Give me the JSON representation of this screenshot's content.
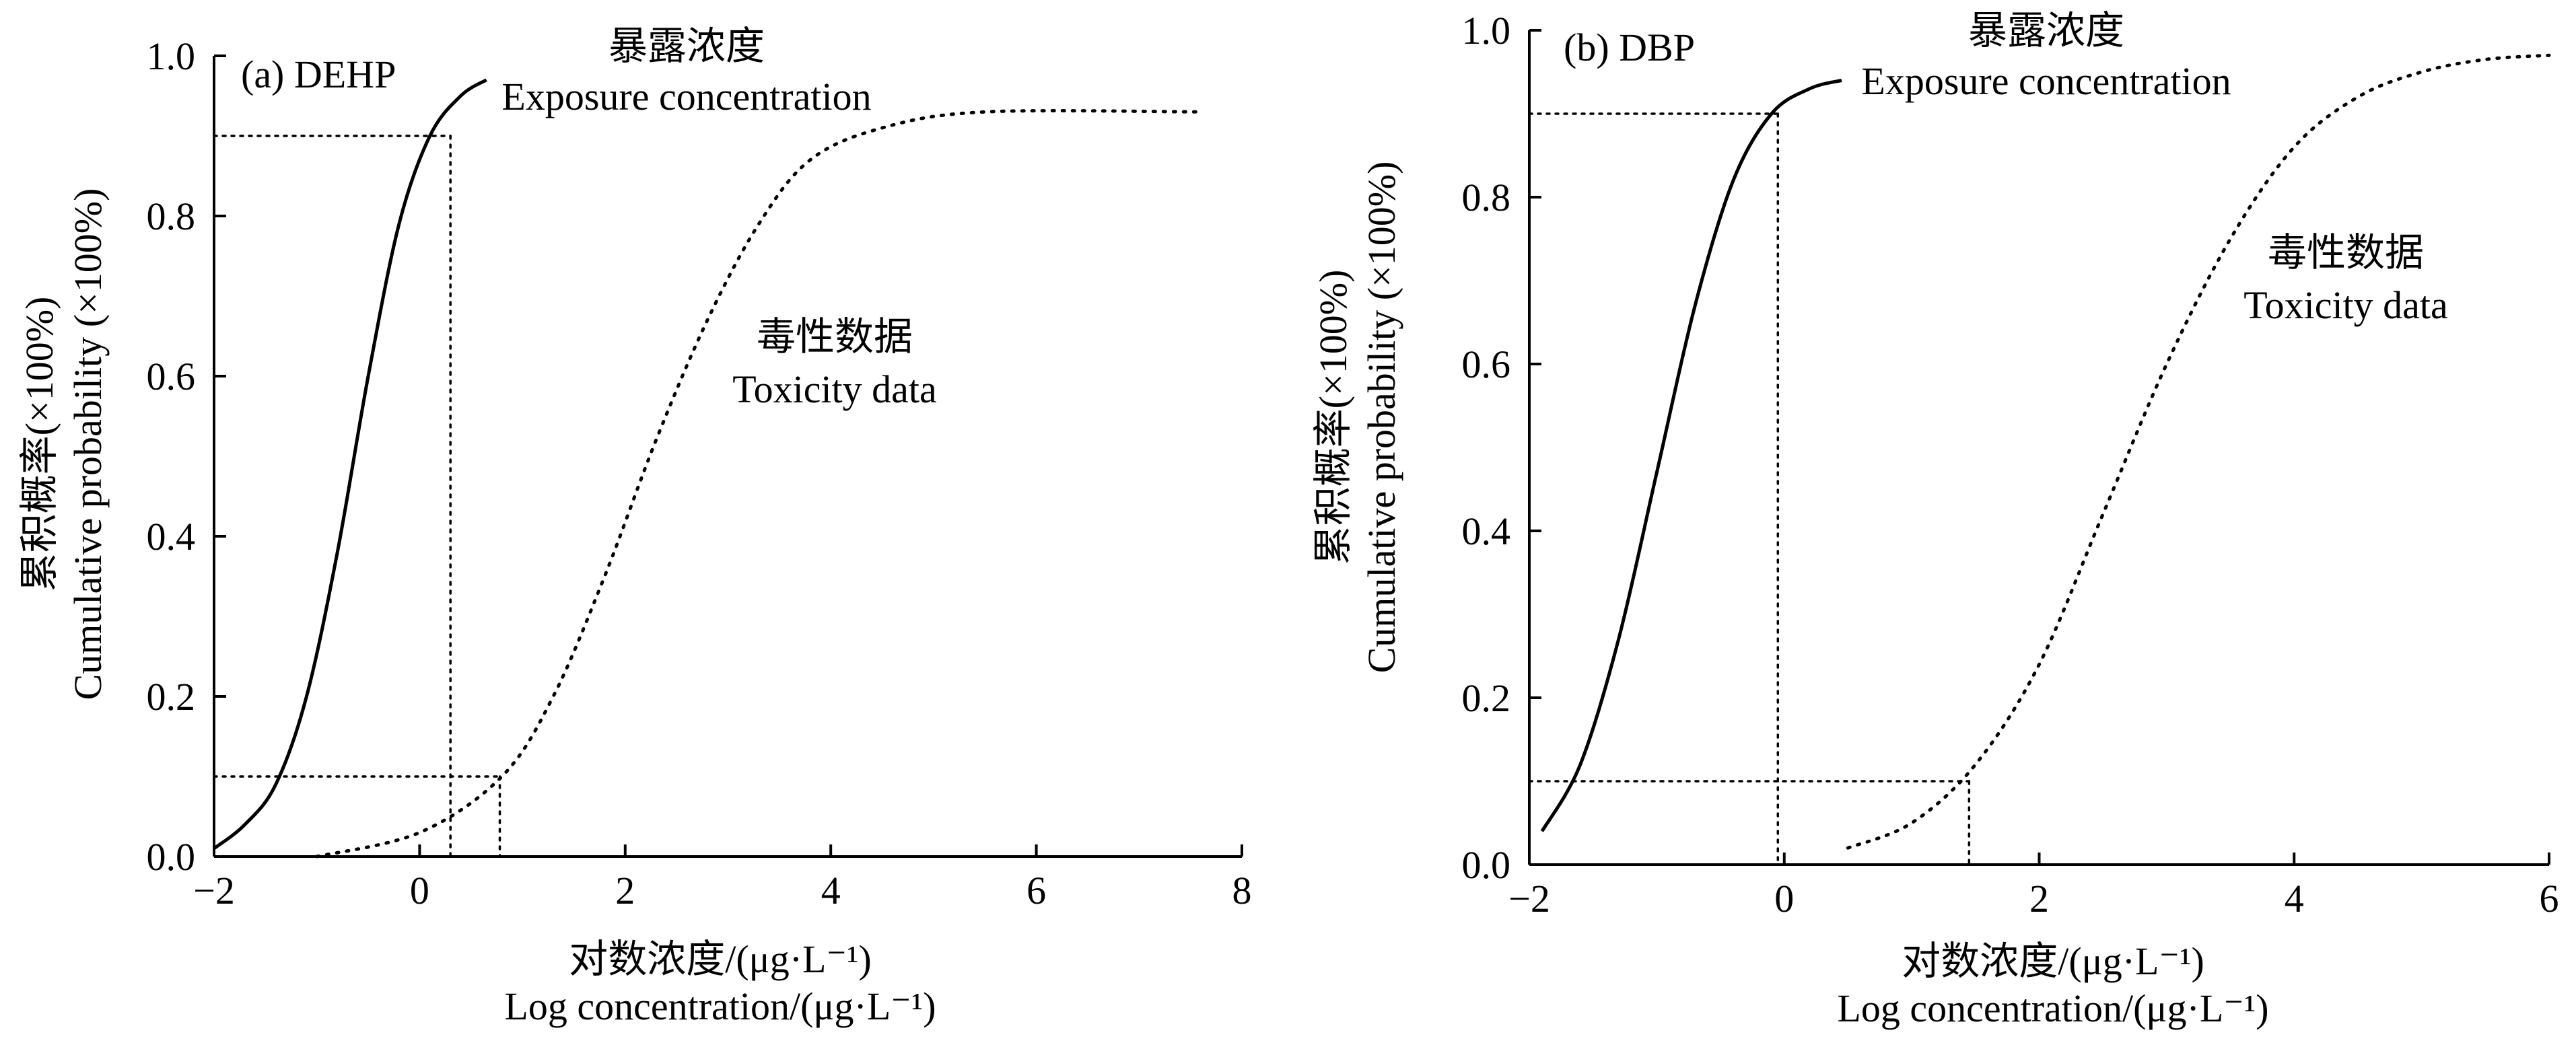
{
  "chart_data": [
    {
      "type": "line",
      "panel": "(a) DEHP",
      "xlabel_cn": "对数浓度/(μg·L⁻¹)",
      "xlabel_en": "Log concentration/(μg·L⁻¹)",
      "ylabel_cn": "累积概率(×100%)",
      "ylabel_en": "Cumulative probability (×100%)",
      "xlim": [
        -2,
        8
      ],
      "ylim": [
        0,
        1.0
      ],
      "x_ticks": [
        -2,
        0,
        2,
        4,
        6,
        8
      ],
      "x_tick_labels": [
        "−2",
        "0",
        "2",
        "4",
        "6",
        "8"
      ],
      "y_ticks": [
        0,
        0.2,
        0.4,
        0.6,
        0.8,
        1.0
      ],
      "y_tick_labels": [
        "0.0",
        "0.2",
        "0.4",
        "0.6",
        "0.8",
        "1.0"
      ],
      "series": [
        {
          "name": "暴露浓度 Exposure concentration",
          "style": "solid",
          "x": [
            -2.0,
            -1.7,
            -1.4,
            -1.1,
            -0.8,
            -0.5,
            -0.2,
            0.1,
            0.4,
            0.65
          ],
          "y": [
            0.01,
            0.04,
            0.09,
            0.2,
            0.38,
            0.6,
            0.79,
            0.9,
            0.95,
            0.97
          ]
        },
        {
          "name": "毒性数据 Toxicity data",
          "style": "dotted",
          "x": [
            -1.0,
            0.0,
            0.8,
            1.3,
            1.8,
            2.3,
            2.8,
            3.3,
            3.8,
            4.5,
            5.5,
            7.6
          ],
          "y": [
            0.0,
            0.03,
            0.1,
            0.2,
            0.35,
            0.52,
            0.67,
            0.79,
            0.87,
            0.91,
            0.93,
            0.93
          ]
        }
      ],
      "reference_lines": [
        {
          "y": 0.9,
          "x": 0.3
        },
        {
          "y": 0.1,
          "x": 0.78
        }
      ],
      "annotations": [
        {
          "cn": "暴露浓度",
          "en": "Exposure concentration"
        },
        {
          "cn": "毒性数据",
          "en": "Toxicity data"
        }
      ]
    },
    {
      "type": "line",
      "panel": "(b) DBP",
      "xlabel_cn": "对数浓度/(μg·L⁻¹)",
      "xlabel_en": "Log concentration/(μg·L⁻¹)",
      "ylabel_cn": "累积概率(×100%)",
      "ylabel_en": "Cumulative probability (×100%)",
      "xlim": [
        -2,
        6
      ],
      "ylim": [
        0,
        1.0
      ],
      "x_ticks": [
        -2,
        0,
        2,
        4,
        6
      ],
      "x_tick_labels": [
        "−2",
        "0",
        "2",
        "4",
        "6"
      ],
      "y_ticks": [
        0,
        0.2,
        0.4,
        0.6,
        0.8,
        1.0
      ],
      "y_tick_labels": [
        "0.0",
        "0.2",
        "0.4",
        "0.6",
        "0.8",
        "1.0"
      ],
      "series": [
        {
          "name": "暴露浓度 Exposure concentration",
          "style": "solid",
          "x": [
            -1.9,
            -1.6,
            -1.3,
            -1.0,
            -0.7,
            -0.4,
            -0.1,
            0.2,
            0.45
          ],
          "y": [
            0.04,
            0.12,
            0.27,
            0.47,
            0.67,
            0.82,
            0.9,
            0.93,
            0.94
          ]
        },
        {
          "name": "毒性数据 Toxicity data",
          "style": "dotted",
          "x": [
            0.5,
            1.0,
            1.5,
            2.0,
            2.5,
            3.0,
            3.5,
            4.0,
            4.5,
            5.0,
            5.5,
            6.0
          ],
          "y": [
            0.02,
            0.05,
            0.12,
            0.24,
            0.42,
            0.6,
            0.75,
            0.86,
            0.92,
            0.95,
            0.965,
            0.97
          ]
        }
      ],
      "reference_lines": [
        {
          "y": 0.9,
          "x": -0.05
        },
        {
          "y": 0.1,
          "x": 1.45
        }
      ],
      "annotations": [
        {
          "cn": "暴露浓度",
          "en": "Exposure concentration"
        },
        {
          "cn": "毒性数据",
          "en": "Toxicity data"
        }
      ]
    }
  ]
}
